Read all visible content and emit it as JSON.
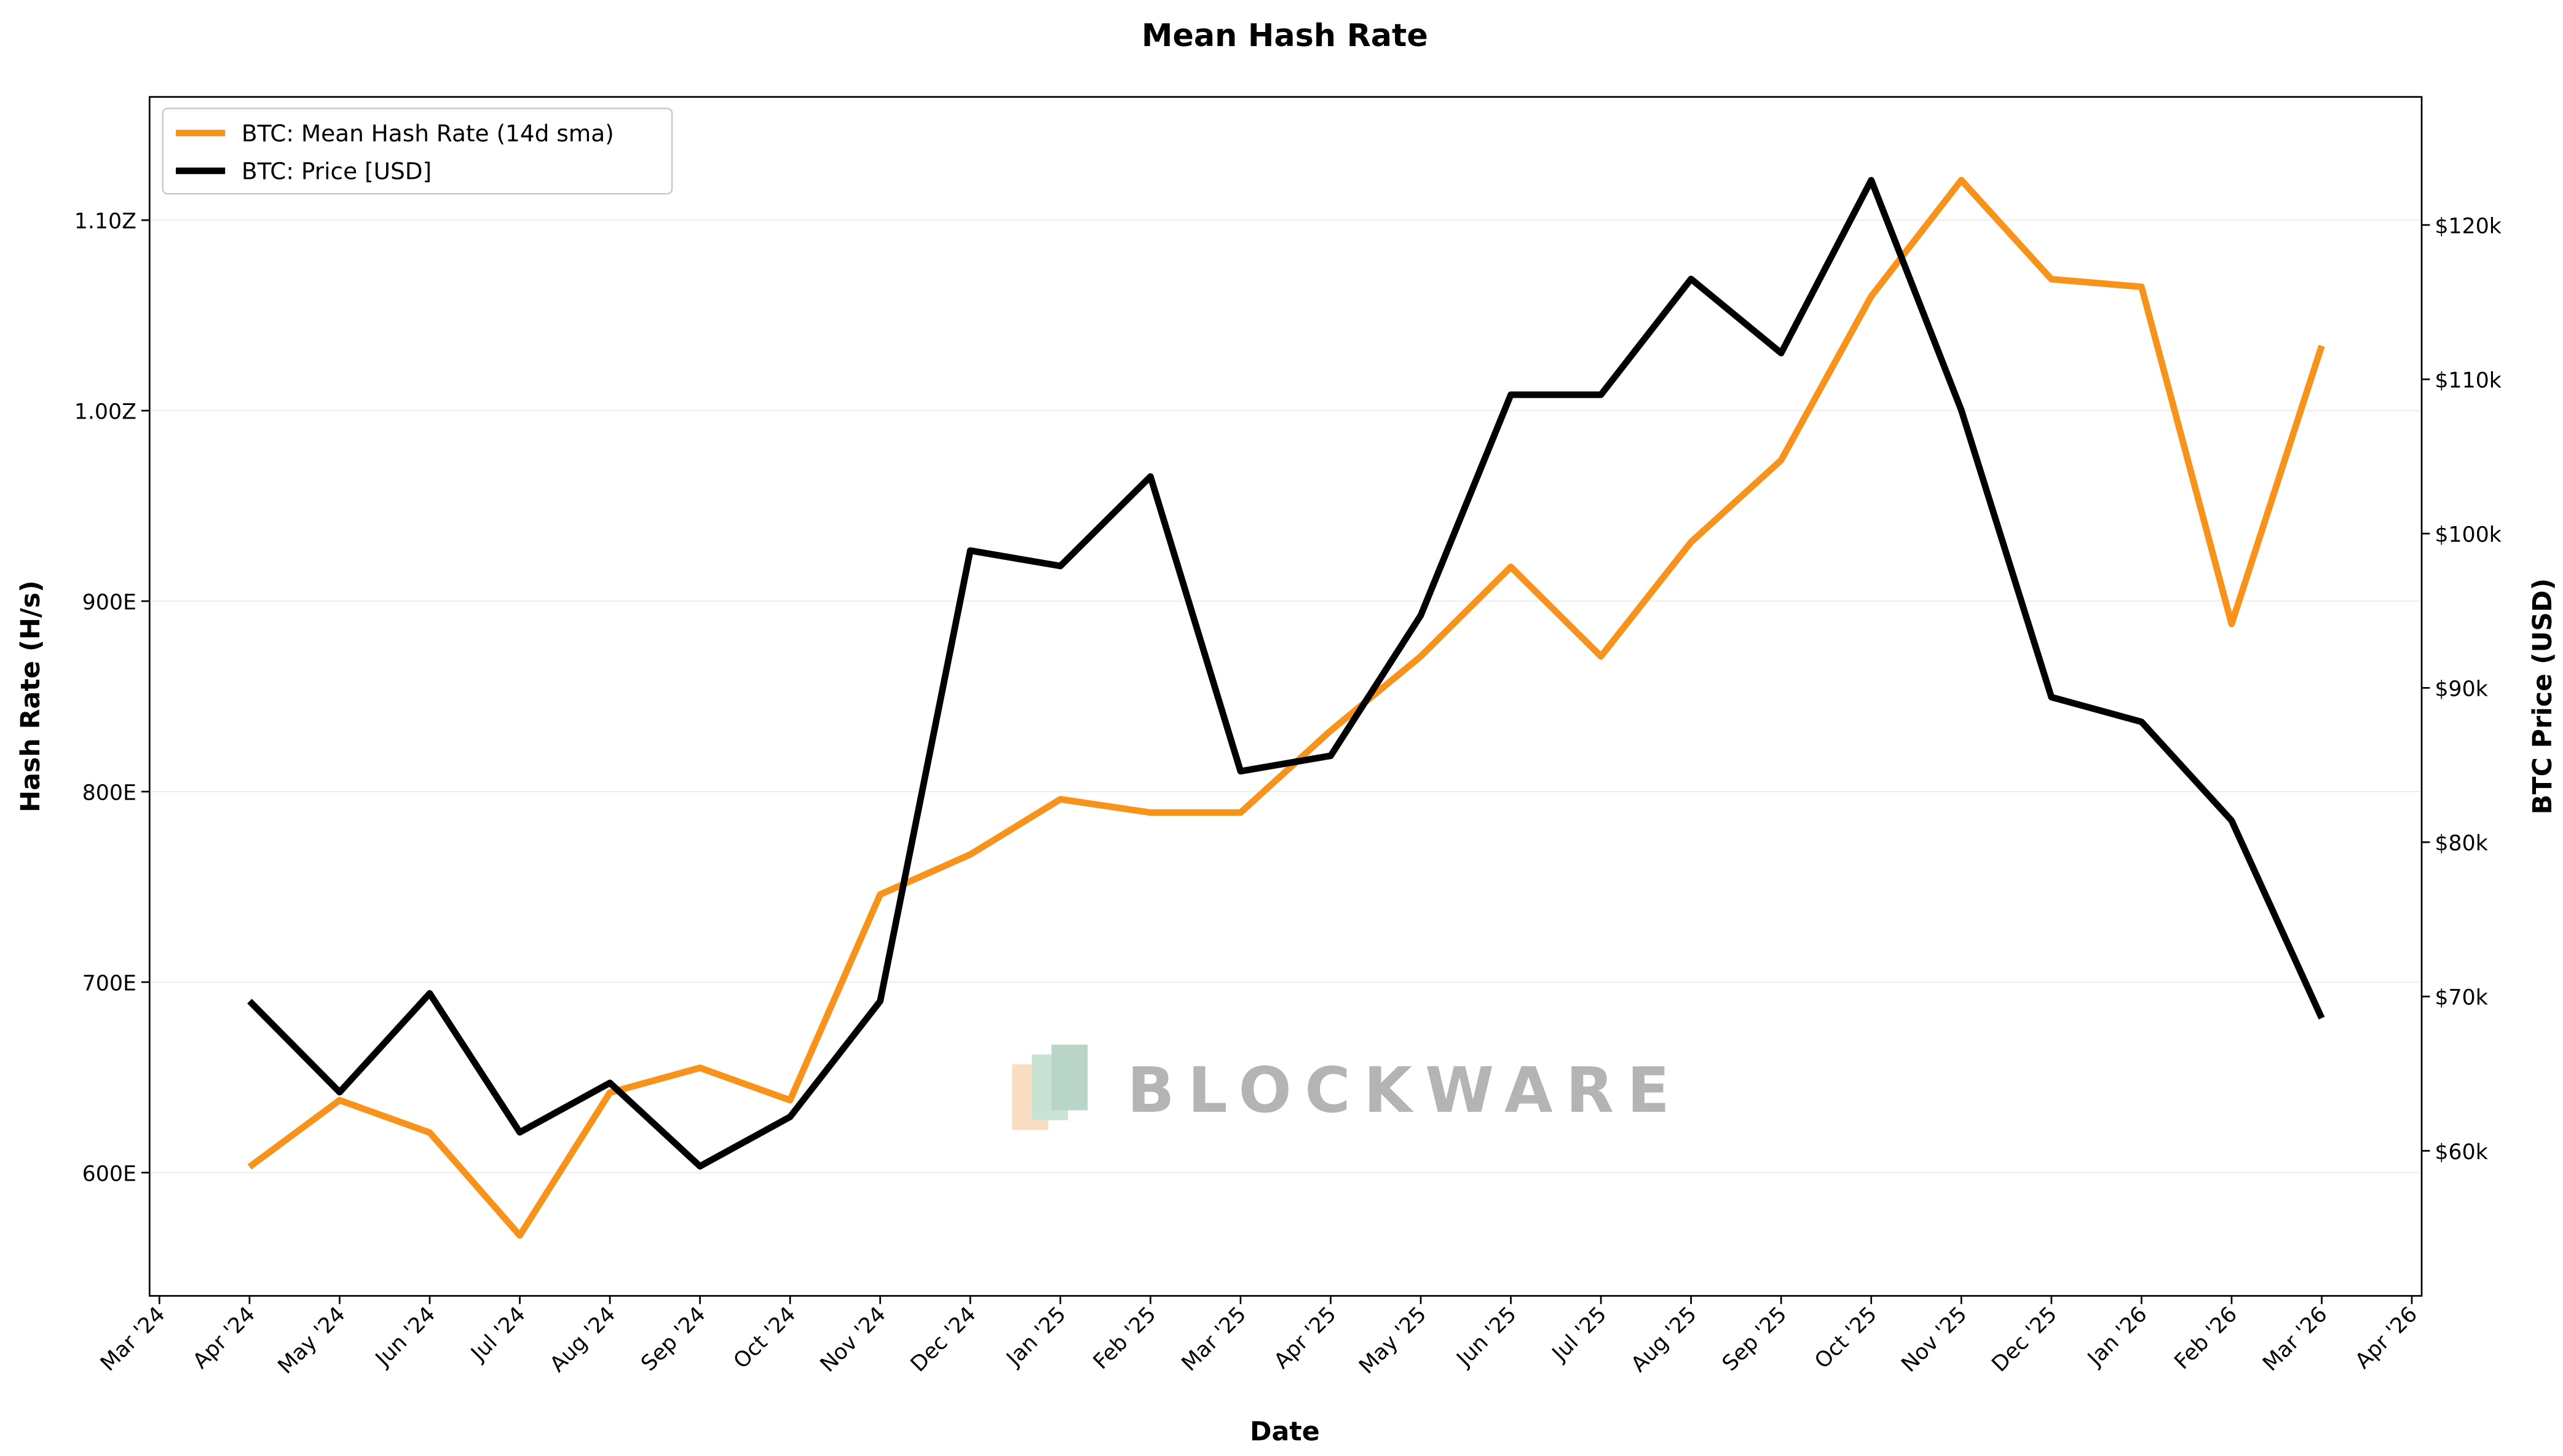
{
  "chart_data": {
    "type": "line",
    "title": "Mean Hash Rate",
    "x_label": "Date",
    "y_label": "Hash Rate (H/s)",
    "y2_label": "BTC Price (USD)",
    "annotation": "BLOCKWARE",
    "legend": "upper left",
    "grid": true,
    "x": [
      "2024-04",
      "2024-05",
      "2024-06",
      "2024-07",
      "2024-08",
      "2024-09",
      "2024-10",
      "2024-11",
      "2024-12",
      "2025-01",
      "2025-02",
      "2025-03",
      "2025-04",
      "2025-05",
      "2025-06",
      "2025-07",
      "2025-08",
      "2025-09",
      "2025-10",
      "2025-11",
      "2025-12",
      "2026-01",
      "2026-02",
      "2026-03"
    ],
    "series": [
      {
        "name": "BTC: Mean Hash Rate (14d sma)",
        "color": "#f7931a",
        "axis": "y",
        "values": [
          6.03e+20,
          6.38e+20,
          6.21e+20,
          5.67e+20,
          6.42e+20,
          6.55e+20,
          6.38e+20,
          7.46e+20,
          7.67e+20,
          7.96e+20,
          7.89e+20,
          7.89e+20,
          8.32e+20,
          8.71e+20,
          9.18e+20,
          8.71e+20,
          9.31e+20,
          9.74e+20,
          1.06e+21,
          1.121e+21,
          1.069e+21,
          1.065e+21,
          8.88e+20,
          1.034e+21
        ]
      },
      {
        "name": "BTC: Price [USD]",
        "color": "#000000",
        "axis": "y2",
        "values": [
          69700,
          63800,
          70200,
          61200,
          64400,
          59000,
          62200,
          69700,
          98900,
          97900,
          103700,
          84600,
          85600,
          94700,
          109000,
          109000,
          116500,
          111700,
          122900,
          108000,
          89400,
          87800,
          81400,
          68600
        ]
      }
    ],
    "xlim": [
      "2024-03",
      "2026-04"
    ],
    "xticks": [
      {
        "value": "2024-03",
        "label": "Mar '24"
      },
      {
        "value": "2024-04",
        "label": "Apr '24"
      },
      {
        "value": "2024-05",
        "label": "May '24"
      },
      {
        "value": "2024-06",
        "label": "Jun '24"
      },
      {
        "value": "2024-07",
        "label": "Jul '24"
      },
      {
        "value": "2024-08",
        "label": "Aug '24"
      },
      {
        "value": "2024-09",
        "label": "Sep '24"
      },
      {
        "value": "2024-10",
        "label": "Oct '24"
      },
      {
        "value": "2024-11",
        "label": "Nov '24"
      },
      {
        "value": "2024-12",
        "label": "Dec '24"
      },
      {
        "value": "2025-01",
        "label": "Jan '25"
      },
      {
        "value": "2025-02",
        "label": "Feb '25"
      },
      {
        "value": "2025-03",
        "label": "Mar '25"
      },
      {
        "value": "2025-04",
        "label": "Apr '25"
      },
      {
        "value": "2025-05",
        "label": "May '25"
      },
      {
        "value": "2025-06",
        "label": "Jun '25"
      },
      {
        "value": "2025-07",
        "label": "Jul '25"
      },
      {
        "value": "2025-08",
        "label": "Aug '25"
      },
      {
        "value": "2025-09",
        "label": "Sep '25"
      },
      {
        "value": "2025-10",
        "label": "Oct '25"
      },
      {
        "value": "2025-11",
        "label": "Nov '25"
      },
      {
        "value": "2025-12",
        "label": "Dec '25"
      },
      {
        "value": "2026-01",
        "label": "Jan '26"
      },
      {
        "value": "2026-02",
        "label": "Feb '26"
      },
      {
        "value": "2026-03",
        "label": "Mar '26"
      },
      {
        "value": "2026-04",
        "label": "Apr '26"
      }
    ],
    "ylim": [
      5.353e+20,
      1.1647e+21
    ],
    "yticks": [
      {
        "value": 6e+20,
        "label": "600E"
      },
      {
        "value": 7e+20,
        "label": "700E"
      },
      {
        "value": 8e+20,
        "label": "800E"
      },
      {
        "value": 9e+20,
        "label": "900E"
      },
      {
        "value": 1e+21,
        "label": "1.00Z"
      },
      {
        "value": 1.1e+21,
        "label": "1.10Z"
      }
    ],
    "y2lim": [
      50600,
      128300
    ],
    "y2ticks": [
      {
        "value": 60000,
        "label": "$60k"
      },
      {
        "value": 70000,
        "label": "$70k"
      },
      {
        "value": 80000,
        "label": "$80k"
      },
      {
        "value": 90000,
        "label": "$90k"
      },
      {
        "value": 100000,
        "label": "$100k"
      },
      {
        "value": 110000,
        "label": "$110k"
      },
      {
        "value": 120000,
        "label": "$120k"
      }
    ]
  }
}
